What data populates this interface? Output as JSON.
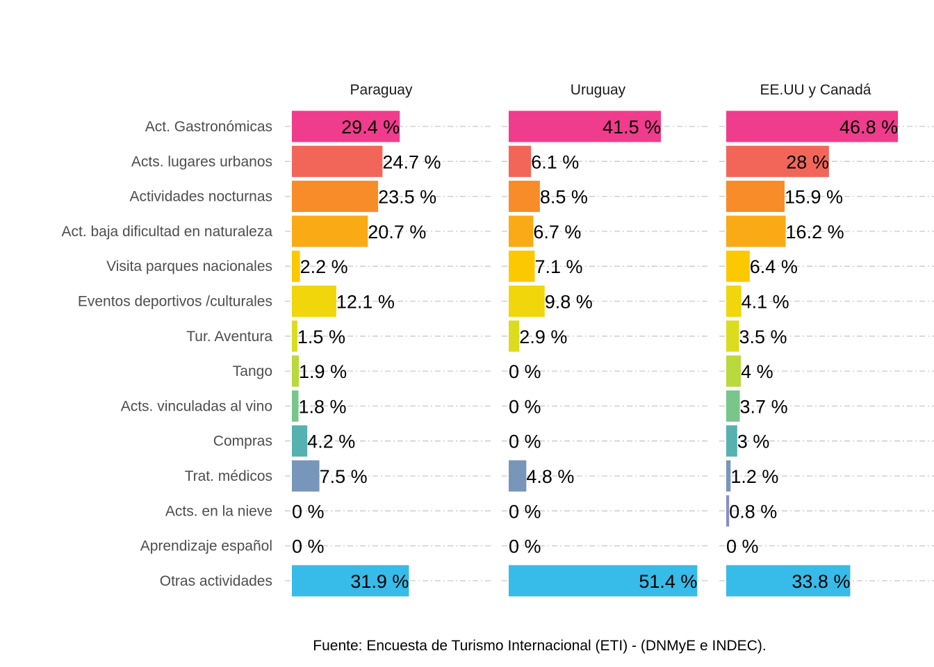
{
  "chart_data": {
    "type": "bar",
    "orientation": "horizontal",
    "categories": [
      "Act. Gastronómicas",
      "Acts. lugares urbanos",
      "Actividades nocturnas",
      "Act. baja dificultad en naturaleza",
      "Visita parques nacionales",
      "Eventos deportivos /culturales",
      "Tur. Aventura",
      "Tango",
      "Acts. vinculadas al vino",
      "Compras",
      "Trat. médicos",
      "Acts. en la nieve",
      "Aprendizaje español",
      "Otras actividades"
    ],
    "category_colors": [
      "#f03c8c",
      "#f2665a",
      "#f78c28",
      "#faaa14",
      "#fcc800",
      "#f0d60a",
      "#dcdc1e",
      "#b9d93c",
      "#78c68a",
      "#55b2b0",
      "#7896b9",
      "#8c8cc0",
      "#8c8cc0",
      "#37bbe8"
    ],
    "series": [
      {
        "name": "Paraguay",
        "values": [
          29.4,
          24.7,
          23.5,
          20.7,
          2.2,
          12.1,
          1.5,
          1.9,
          1.8,
          4.2,
          7.5,
          0,
          0,
          31.9
        ],
        "labels": [
          "29.4 %",
          "24.7 %",
          "23.5 %",
          "20.7 %",
          "2.2 %",
          "12.1 %",
          "1.5 %",
          "1.9 %",
          "1.8 %",
          "4.2 %",
          "7.5 %",
          "0 %",
          "0 %",
          "31.9 %"
        ]
      },
      {
        "name": "Uruguay",
        "values": [
          41.5,
          6.1,
          8.5,
          6.7,
          7.1,
          9.8,
          2.9,
          0,
          0,
          0,
          4.8,
          0,
          0,
          51.4
        ],
        "labels": [
          "41.5 %",
          "6.1 %",
          "8.5 %",
          "6.7 %",
          "7.1 %",
          "9.8 %",
          "2.9 %",
          "0 %",
          "0 %",
          "0 %",
          "4.8 %",
          "0 %",
          "0 %",
          "51.4 %"
        ]
      },
      {
        "name": "EE.UU y Canadá",
        "values": [
          46.8,
          28,
          15.9,
          16.2,
          6.4,
          4.1,
          3.5,
          4,
          3.7,
          3,
          1.2,
          0.8,
          0,
          33.8
        ],
        "labels": [
          "46.8 %",
          "28 %",
          "15.9 %",
          "16.2 %",
          "6.4 %",
          "4.1 %",
          "3.5 %",
          "4 %",
          "3.7 %",
          "3 %",
          "1.2 %",
          "0.8 %",
          "0 %",
          "33.8 %"
        ]
      }
    ],
    "xlim": [
      0,
      52
    ],
    "grid": "horizontal dash-dot",
    "legend": "none",
    "caption": "Fuente: Encuesta de Turismo Internacional (ETI) - (DNMyE e INDEC)."
  }
}
